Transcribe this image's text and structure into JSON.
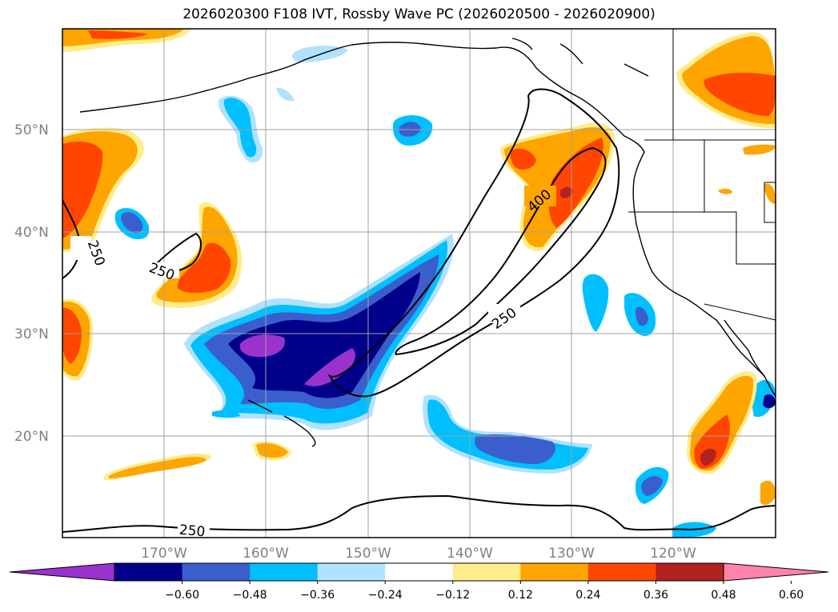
{
  "title": "2026020300 F108 IVT, Rossby Wave PC (2026020500 - 2026020900)",
  "lat_labels": [
    "50°N",
    "40°N",
    "30°N",
    "20°N"
  ],
  "lon_labels": [
    "170°W",
    "160°W",
    "150°W",
    "140°W",
    "130°W",
    "120°W"
  ],
  "colorbar": {
    "ticks": [
      "−0.60",
      "−0.48",
      "−0.36",
      "−0.24",
      "−0.12",
      "0.12",
      "0.24",
      "0.36",
      "0.48",
      "0.60"
    ],
    "colors": [
      "#9a32cd",
      "#00008b",
      "#3a5fcd",
      "#00bfff",
      "#b0e2ff",
      "#ffffff",
      "#ffec8b",
      "#ffa500",
      "#ff4500",
      "#b22222",
      "#ff82ab"
    ]
  },
  "contour_labels": [
    "250",
    "250",
    "250",
    "400",
    "250"
  ],
  "colors": {
    "contour": "#000000",
    "coast": "#000000",
    "grid": "#a0a0a0"
  }
}
